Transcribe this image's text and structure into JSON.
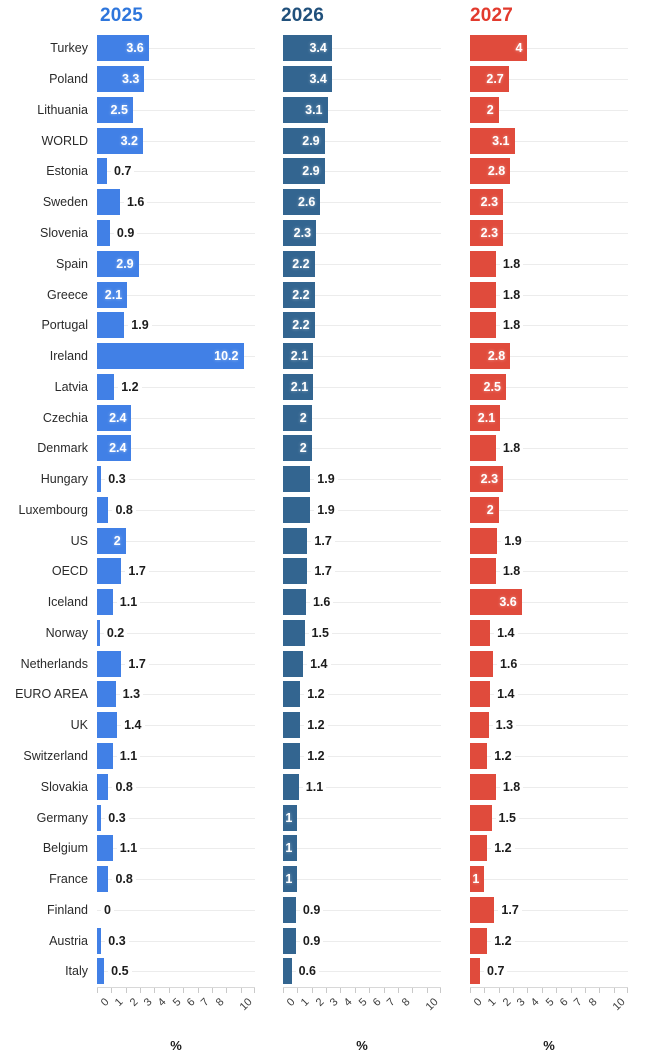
{
  "chart_data": {
    "type": "bar",
    "orientation": "horizontal",
    "title": "",
    "xlabel": "%",
    "xlim": [
      0,
      11
    ],
    "grid": "row-lines",
    "xtick_labels": [
      "0",
      "1",
      "2",
      "3",
      "4",
      "5",
      "6",
      "7",
      "8",
      "",
      "10",
      ""
    ],
    "categories": [
      "Turkey",
      "Poland",
      "Lithuania",
      "WORLD",
      "Estonia",
      "Sweden",
      "Slovenia",
      "Spain",
      "Greece",
      "Portugal",
      "Ireland",
      "Latvia",
      "Czechia",
      "Denmark",
      "Hungary",
      "Luxembourg",
      "US",
      "OECD",
      "Iceland",
      "Norway",
      "Netherlands",
      "EURO AREA",
      "UK",
      "Switzerland",
      "Slovakia",
      "Germany",
      "Belgium",
      "France",
      "Finland",
      "Austria",
      "Italy"
    ],
    "series": [
      {
        "name": "2025",
        "bar_color": "#4180e6",
        "header_color": "#2e76dc",
        "values": [
          3.6,
          3.3,
          2.5,
          3.2,
          0.7,
          1.6,
          0.9,
          2.9,
          2.1,
          1.9,
          10.2,
          1.2,
          2.4,
          2.4,
          0.3,
          0.8,
          2,
          1.7,
          1.1,
          0.2,
          1.7,
          1.3,
          1.4,
          1.1,
          0.8,
          0.3,
          1.1,
          0.8,
          0,
          0.3,
          0.5
        ]
      },
      {
        "name": "2026",
        "bar_color": "#336590",
        "header_color": "#20507b",
        "values": [
          3.4,
          3.4,
          3.1,
          2.9,
          2.9,
          2.6,
          2.3,
          2.2,
          2.2,
          2.2,
          2.1,
          2.1,
          2,
          2,
          1.9,
          1.9,
          1.7,
          1.7,
          1.6,
          1.5,
          1.4,
          1.2,
          1.2,
          1.2,
          1.1,
          1,
          1,
          1,
          0.9,
          0.9,
          0.6
        ]
      },
      {
        "name": "2027",
        "bar_color": "#e04b3c",
        "header_color": "#e23a2d",
        "values": [
          4,
          2.7,
          2,
          3.1,
          2.8,
          2.3,
          2.3,
          1.8,
          1.8,
          1.8,
          2.8,
          2.5,
          2.1,
          1.8,
          2.3,
          2,
          1.9,
          1.8,
          3.6,
          1.4,
          1.6,
          1.4,
          1.3,
          1.2,
          1.8,
          1.5,
          1.2,
          1,
          1.7,
          1.2,
          0.7
        ]
      }
    ]
  }
}
